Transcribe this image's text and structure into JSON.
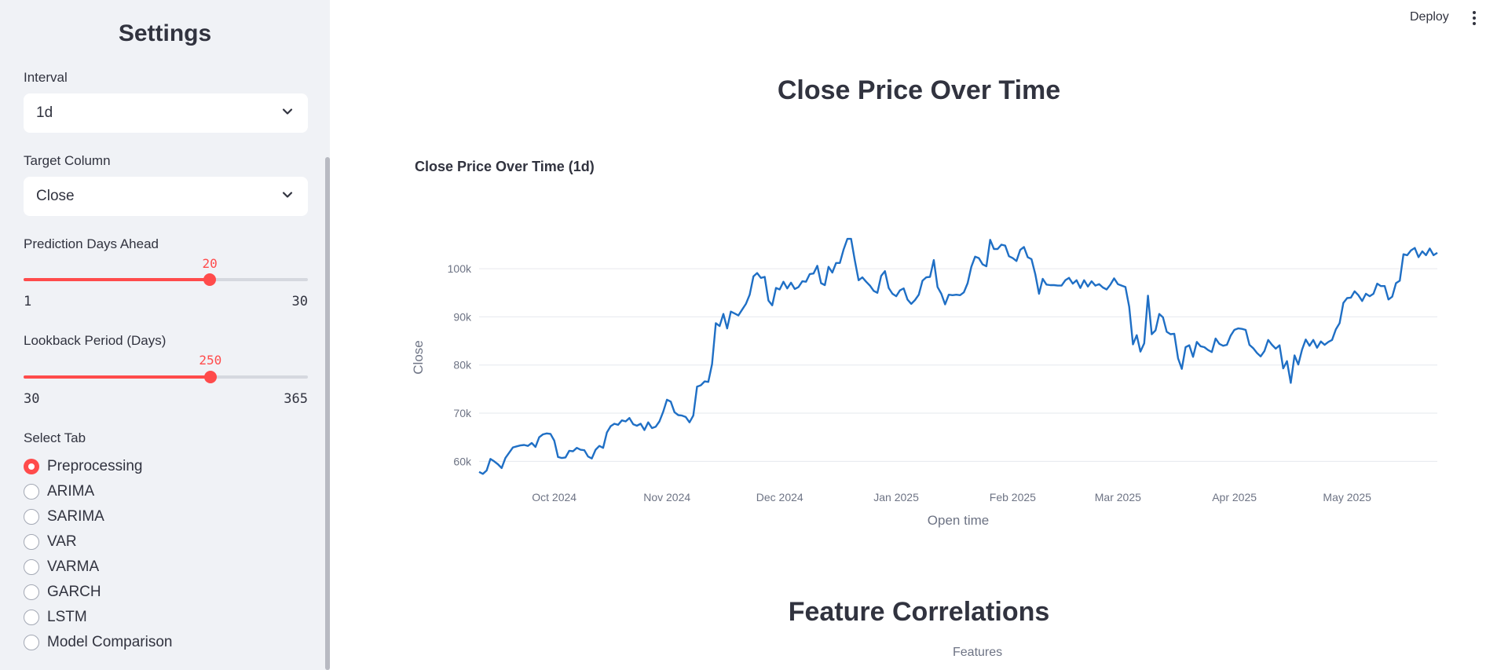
{
  "sidebar": {
    "title": "Settings",
    "interval": {
      "label": "Interval",
      "value": "1d"
    },
    "target": {
      "label": "Target Column",
      "value": "Close"
    },
    "prediction": {
      "label": "Prediction Days Ahead",
      "value": "20",
      "min": "1",
      "max": "30",
      "fraction": 0.655
    },
    "lookback": {
      "label": "Lookback Period (Days)",
      "value": "250",
      "min": "30",
      "max": "365",
      "fraction": 0.657
    },
    "tabs": {
      "label": "Select Tab",
      "items": [
        "Preprocessing",
        "ARIMA",
        "SARIMA",
        "VAR",
        "VARMA",
        "GARCH",
        "LSTM",
        "Model Comparison"
      ],
      "selected": "Preprocessing"
    }
  },
  "header": {
    "deploy": "Deploy"
  },
  "main": {
    "heading": "Close Price Over Time",
    "section2_heading": "Feature Correlations",
    "features_label": "Features"
  },
  "colors": {
    "accent": "#ff4b4b",
    "line": "#1f6fc5",
    "grid": "#e6e8ee"
  },
  "chart_data": {
    "type": "line",
    "title": "Close Price Over Time (1d)",
    "xlabel": "Open time",
    "ylabel": "Close",
    "ylim": [
      55000,
      108500
    ],
    "yticks": [
      60000,
      70000,
      80000,
      90000,
      100000
    ],
    "ytick_labels": [
      "60k",
      "70k",
      "80k",
      "90k",
      "100k"
    ],
    "xticks": [
      {
        "label": "Oct 2024",
        "day": 20
      },
      {
        "label": "Nov 2024",
        "day": 50
      },
      {
        "label": "Dec 2024",
        "day": 80
      },
      {
        "label": "Jan 2025",
        "day": 111
      },
      {
        "label": "Feb 2025",
        "day": 142
      },
      {
        "label": "Mar 2025",
        "day": 170
      },
      {
        "label": "Apr 2025",
        "day": 201
      },
      {
        "label": "May 2025",
        "day": 231
      }
    ],
    "x_start": "2024-09-10",
    "series": [
      {
        "name": "Close",
        "values": [
          57800,
          57400,
          58100,
          60500,
          60000,
          59400,
          58600,
          60700,
          61800,
          62900,
          63100,
          63300,
          63400,
          63200,
          63800,
          63000,
          65000,
          65600,
          65800,
          65700,
          64300,
          60900,
          60700,
          60800,
          62200,
          62100,
          62800,
          62400,
          62300,
          61000,
          60600,
          62400,
          63200,
          62800,
          66000,
          67300,
          67800,
          67600,
          68500,
          68300,
          69000,
          67700,
          67400,
          67800,
          66500,
          68100,
          66900,
          67200,
          68300,
          70300,
          72800,
          72400,
          70200,
          69600,
          69500,
          69200,
          68100,
          69500,
          75500,
          75800,
          76600,
          76500,
          80200,
          88700,
          88100,
          90600,
          87600,
          91100,
          90700,
          90300,
          91500,
          92700,
          94600,
          98400,
          99100,
          98100,
          98300,
          93400,
          92400,
          96000,
          95700,
          97300,
          95900,
          97100,
          95800,
          96200,
          97400,
          97300,
          98900,
          99000,
          100600,
          97000,
          96600,
          100400,
          99200,
          101200,
          101200,
          104000,
          106200,
          106200,
          101700,
          97600,
          98200,
          97300,
          96500,
          95400,
          95000,
          98500,
          99500,
          96000,
          94800,
          94300,
          95500,
          95900,
          93600,
          92700,
          93500,
          94600,
          97500,
          98200,
          98300,
          101800,
          96200,
          94800,
          92600,
          94600,
          94500,
          94600,
          94500,
          95100,
          97000,
          100400,
          102500,
          102200,
          100900,
          100500,
          106000,
          104100,
          104100,
          105000,
          104800,
          102600,
          102200,
          101600,
          103900,
          104500,
          102400,
          102000,
          98900,
          94800,
          97900,
          96700,
          96600,
          96600,
          96500,
          96500,
          97600,
          98100,
          96900,
          97600,
          96000,
          97600,
          96300,
          97400,
          96500,
          96800,
          96100,
          95700,
          96700,
          98000,
          96800,
          96500,
          96200,
          92100,
          84300,
          86200,
          82800,
          84500,
          94400,
          86400,
          87200,
          90600,
          89900,
          86900,
          86400,
          86500,
          81400,
          79200,
          83700,
          84100,
          81700,
          84800,
          83900,
          83700,
          83100,
          82700,
          85500,
          84400,
          84000,
          84200,
          86100,
          87300,
          87600,
          87500,
          87300,
          84200,
          83500,
          82500,
          81800,
          82900,
          85200,
          84200,
          83400,
          84100,
          79300,
          80800,
          76300,
          82000,
          80100,
          83200,
          85300,
          84000,
          85200,
          83600,
          84900,
          84200,
          84800,
          85200,
          87400,
          88700,
          92900,
          93900,
          94000,
          95300,
          94500,
          93300,
          94800,
          94300,
          94800,
          96900,
          96400,
          96400,
          93600,
          94200,
          97000,
          97500,
          103000,
          102800,
          103800,
          104300,
          102400,
          103600,
          102800,
          104200,
          102800,
          103300
        ]
      }
    ]
  }
}
